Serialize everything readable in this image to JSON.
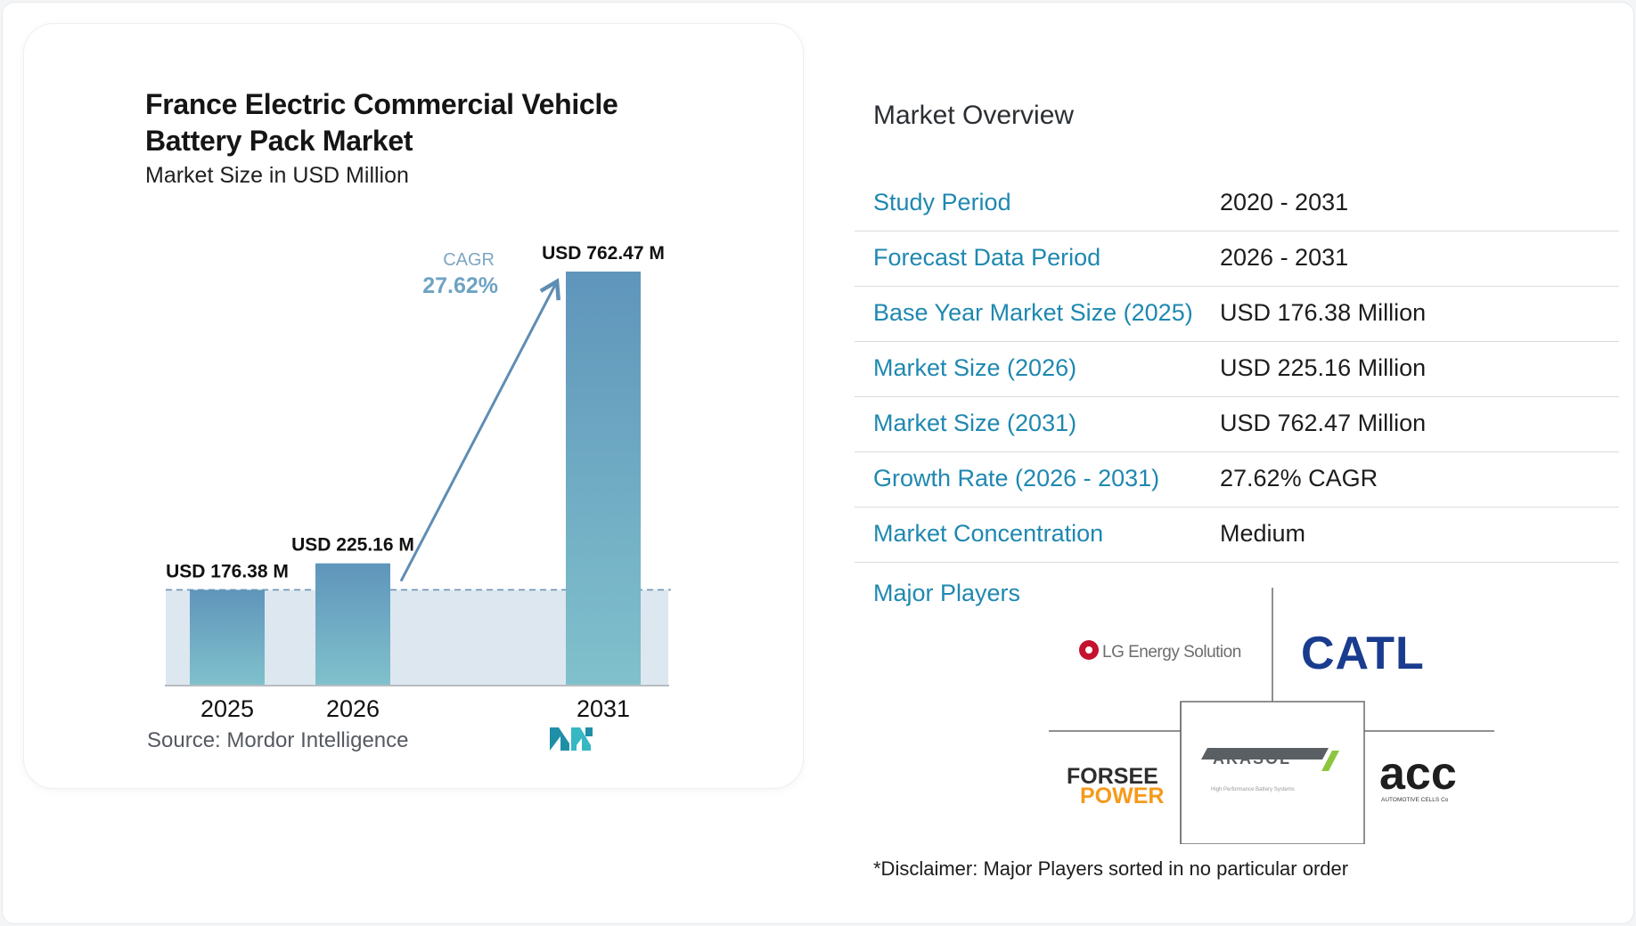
{
  "chart_data": {
    "type": "bar",
    "title": "France Electric Commercial Vehicle Battery Pack Market",
    "subtitle": "Market Size in USD Million",
    "categories": [
      "2025",
      "2026",
      "2031"
    ],
    "values": [
      176.38,
      225.16,
      762.47
    ],
    "value_labels": [
      "USD 176.38 M",
      "USD 225.16 M",
      "USD 762.47 M"
    ],
    "cagr_label": "CAGR",
    "cagr_value": "27.62%",
    "ylim": [
      0,
      762.47
    ],
    "colors": {
      "bar_top": "#5f95bb",
      "bar_bottom": "#80c1cc",
      "baseline_band": "#dde7f0",
      "arrow": "#5f8db3",
      "cagr_text": "#6fa3c3"
    }
  },
  "source": "Source:  Mordor Intelligence",
  "overview": {
    "title": "Market Overview",
    "rows": [
      {
        "label": "Study Period",
        "value": "2020 - 2031"
      },
      {
        "label": "Forecast Data Period",
        "value": "2026 - 2031"
      },
      {
        "label": "Base Year Market Size (2025)",
        "value": "USD 176.38 Million"
      },
      {
        "label": "Market Size (2026)",
        "value": "USD 225.16 Million"
      },
      {
        "label": "Market Size (2031)",
        "value": "USD 762.47 Million"
      },
      {
        "label": "Growth Rate (2026 - 2031)",
        "value": "27.62% CAGR"
      },
      {
        "label": "Market Concentration",
        "value": "Medium"
      }
    ]
  },
  "players": {
    "title": "Major Players",
    "logos": {
      "lg": "LG Energy Solution",
      "catl": "CATL",
      "forsee_1": "FORSEE",
      "forsee_2": "POWER",
      "akasol": "AKASOL",
      "akasol_tag": "High Performance Battery Systems",
      "acc": "acc",
      "acc_tag": "AUTOMOTIVE CELLS Co"
    },
    "colors": {
      "label": "#1f88b0",
      "catl": "#1a3c8e",
      "lg": "#c4122f",
      "forsee_power": "#f59a1b"
    }
  },
  "disclaimer": "*Disclaimer: Major Players sorted in no particular order"
}
